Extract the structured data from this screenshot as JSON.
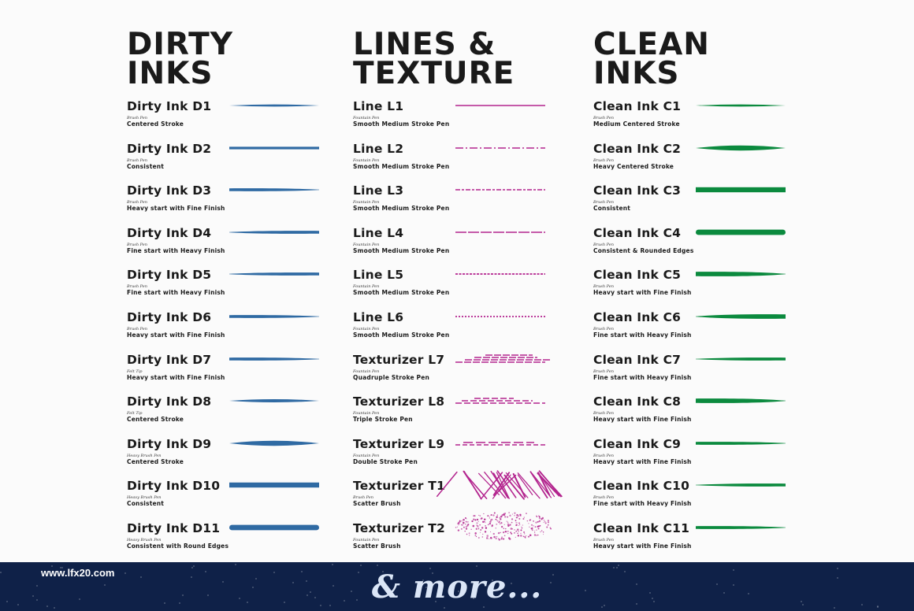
{
  "colors": {
    "dirty": "#2f6aa3",
    "lines": "#b3248e",
    "clean": "#0b8a3e",
    "footer_bg": "#0f2148"
  },
  "columns": [
    {
      "title": "DIRTY INKS",
      "accent": "dirty",
      "items": [
        {
          "name": "Dirty Ink D1",
          "tool": "Brush Pen",
          "desc": "Centered Stroke",
          "stroke": "taper-both"
        },
        {
          "name": "Dirty Ink D2",
          "tool": "Brush Pen",
          "desc": "Consistent",
          "stroke": "consistent"
        },
        {
          "name": "Dirty Ink D3",
          "tool": "Brush Pen",
          "desc": "Heavy start with Fine Finish",
          "stroke": "heavy-fine"
        },
        {
          "name": "Dirty Ink D4",
          "tool": "Brush Pen",
          "desc": "Fine start with Heavy Finish",
          "stroke": "fine-heavy"
        },
        {
          "name": "Dirty Ink D5",
          "tool": "Brush Pen",
          "desc": "Fine start with Heavy Finish",
          "stroke": "fine-heavy"
        },
        {
          "name": "Dirty Ink D6",
          "tool": "Brush Pen",
          "desc": "Heavy start with Fine Finish",
          "stroke": "heavy-fine"
        },
        {
          "name": "Dirty Ink D7",
          "tool": "Felt Tip",
          "desc": "Heavy start with Fine Finish",
          "stroke": "heavy-fine"
        },
        {
          "name": "Dirty Ink D8",
          "tool": "Felt Tip",
          "desc": "Centered Stroke",
          "stroke": "taper-both-thick"
        },
        {
          "name": "Dirty Ink D9",
          "tool": "Heavy Brush Pen",
          "desc": "Centered Stroke",
          "stroke": "taper-both-heavy"
        },
        {
          "name": "Dirty Ink D10",
          "tool": "Heavy Brush Pen",
          "desc": "Consistent",
          "stroke": "consistent-heavy"
        },
        {
          "name": "Dirty Ink D11",
          "tool": "Heavy Brush Pen",
          "desc": "Consistent with Round Edges",
          "stroke": "round-heavy"
        }
      ]
    },
    {
      "title": "LINES & TEXTURE",
      "accent": "lines",
      "items": [
        {
          "name": "Line L1",
          "tool": "Fountain Pen",
          "desc": "Smooth Medium Stroke Pen",
          "stroke": "line-solid"
        },
        {
          "name": "Line L2",
          "tool": "Fountain Pen",
          "desc": "Smooth Medium Stroke Pen",
          "stroke": "line-dashed-a"
        },
        {
          "name": "Line L3",
          "tool": "Fountain Pen",
          "desc": "Smooth Medium Stroke Pen",
          "stroke": "line-dashed-b"
        },
        {
          "name": "Line L4",
          "tool": "Fountain Pen",
          "desc": "Smooth Medium Stroke Pen",
          "stroke": "line-dashed-c"
        },
        {
          "name": "Line L5",
          "tool": "Fountain Pen",
          "desc": "Smooth Medium Stroke Pen",
          "stroke": "line-dotted-a"
        },
        {
          "name": "Line L6",
          "tool": "Fountain Pen",
          "desc": "Smooth Medium Stroke Pen",
          "stroke": "line-dotted-b"
        },
        {
          "name": "Texturizer L7",
          "tool": "Fountain Pen",
          "desc": "Quadruple Stroke Pen",
          "stroke": "multi-4"
        },
        {
          "name": "Texturizer L8",
          "tool": "Fountain Pen",
          "desc": "Triple Stroke Pen",
          "stroke": "multi-3"
        },
        {
          "name": "Texturizer L9",
          "tool": "Fountain Pen",
          "desc": "Double Stroke Pen",
          "stroke": "multi-2"
        },
        {
          "name": "Texturizer T1",
          "tool": "Brush Pen",
          "desc": "Scatter Brush",
          "stroke": "hatch"
        },
        {
          "name": "Texturizer T2",
          "tool": "Fountain Pen",
          "desc": "Scatter Brush",
          "stroke": "scatter"
        }
      ]
    },
    {
      "title": "CLEAN INKS",
      "accent": "clean",
      "items": [
        {
          "name": "Clean Ink C1",
          "tool": "Brush Pen",
          "desc": "Medium Centered Stroke",
          "stroke": "taper-both"
        },
        {
          "name": "Clean Ink C2",
          "tool": "Brush Pen",
          "desc": "Heavy Centered Stroke",
          "stroke": "taper-both-heavy"
        },
        {
          "name": "Clean Ink C3",
          "tool": "Brush Pen",
          "desc": "Consistent",
          "stroke": "consistent-heavy"
        },
        {
          "name": "Clean Ink C4",
          "tool": "Brush Pen",
          "desc": "Consistent & Rounded Edges",
          "stroke": "round-heavy"
        },
        {
          "name": "Clean Ink C5",
          "tool": "Brush Pen",
          "desc": "Heavy start with Fine Finish",
          "stroke": "heavy-fine-thick"
        },
        {
          "name": "Clean Ink C6",
          "tool": "Brush Pen",
          "desc": "Fine start with Heavy Finish",
          "stroke": "fine-heavy-thick"
        },
        {
          "name": "Clean Ink C7",
          "tool": "Brush Pen",
          "desc": "Fine start with Heavy Finish",
          "stroke": "fine-heavy"
        },
        {
          "name": "Clean Ink C8",
          "tool": "Brush Pen",
          "desc": "Heavy start with Fine Finish",
          "stroke": "heavy-fine-thick"
        },
        {
          "name": "Clean Ink C9",
          "tool": "Brush Pen",
          "desc": "Heavy start with Fine Finish",
          "stroke": "heavy-fine"
        },
        {
          "name": "Clean Ink C10",
          "tool": "Brush Pen",
          "desc": "Fine start with Heavy Finish",
          "stroke": "fine-heavy"
        },
        {
          "name": "Clean Ink C11",
          "tool": "Brush Pen",
          "desc": "Heavy start with Fine Finish",
          "stroke": "heavy-fine"
        }
      ]
    }
  ],
  "footer": {
    "url": "www.lfx20.com",
    "tagline": "& more..."
  }
}
